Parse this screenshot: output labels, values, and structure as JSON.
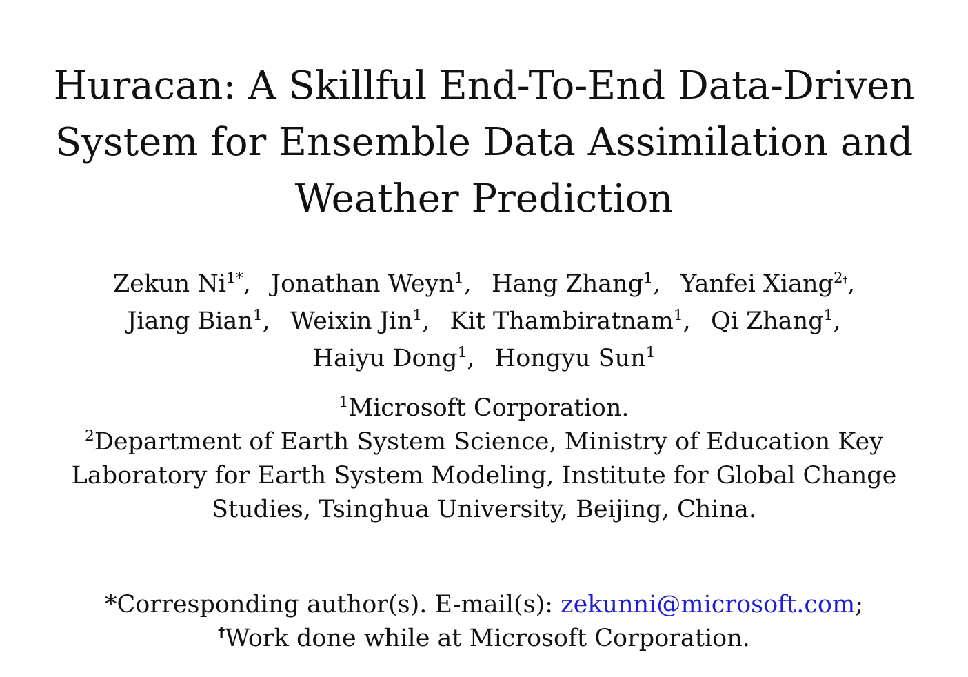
{
  "title": {
    "line1": "Huracan: A Skillful End-To-End Data-Driven",
    "line2": "System for Ensemble Data Assimilation and",
    "line3": "Weather Prediction"
  },
  "authors": [
    {
      "name": "Zekun Ni",
      "mark": "1*"
    },
    {
      "name": "Jonathan Weyn",
      "mark": "1"
    },
    {
      "name": "Hang Zhang",
      "mark": "1"
    },
    {
      "name": "Yanfei Xiang",
      "mark": "2",
      "mark2": "†"
    },
    {
      "name": "Jiang Bian",
      "mark": "1"
    },
    {
      "name": "Weixin Jin",
      "mark": "1"
    },
    {
      "name": "Kit Thambiratnam",
      "mark": "1"
    },
    {
      "name": "Qi Zhang",
      "mark": "1"
    },
    {
      "name": "Haiyu Dong",
      "mark": "1"
    },
    {
      "name": "Hongyu Sun",
      "mark": "1"
    }
  ],
  "separator": ",",
  "affiliations": {
    "a1_mark": "1",
    "a1_text": "Microsoft Corporation.",
    "a2_mark": "2",
    "a2_line1": "Department of Earth System Science, Ministry of Education Key",
    "a2_line2": "Laboratory for Earth System Modeling, Institute for Global Change",
    "a2_line3": "Studies, Tsinghua University, Beijing, China."
  },
  "footnotes": {
    "corresponding_prefix": "*Corresponding author(s). E-mail(s): ",
    "email": "zekunni@microsoft.com",
    "corresponding_suffix": ";",
    "dagger": "†",
    "work_note": "Work done while at Microsoft Corporation."
  },
  "colors": {
    "text": "#111111",
    "link": "#1d1dd6"
  }
}
